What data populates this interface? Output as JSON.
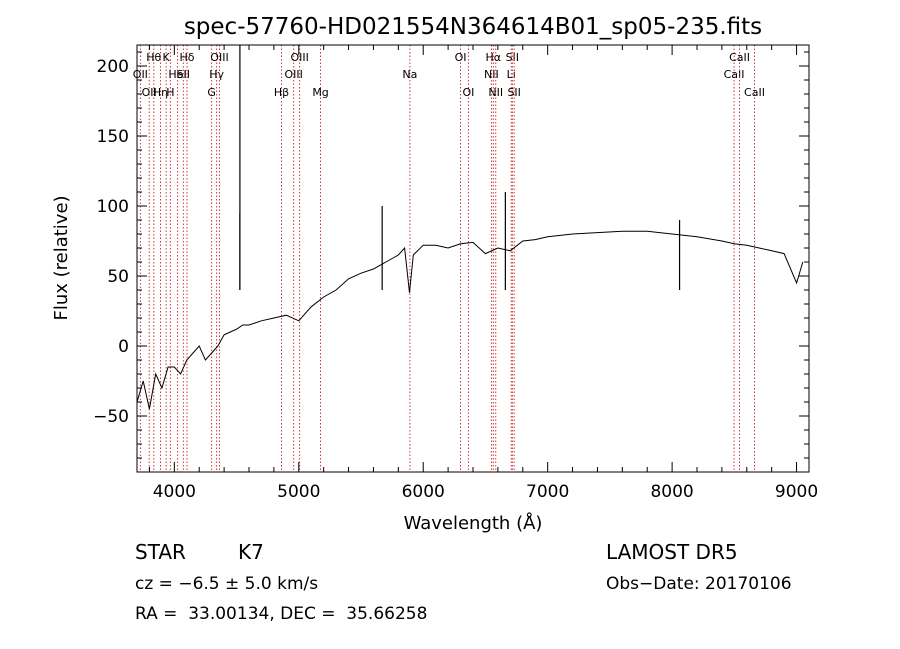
{
  "chart_data": {
    "type": "line",
    "title": "spec-57760-HD021554N364614B01_sp05-235.fits",
    "xlabel": "Wavelength (Å)",
    "ylabel": "Flux (relative)",
    "xlim": [
      3700,
      9100
    ],
    "ylim": [
      -90,
      215
    ],
    "x_ticks": [
      4000,
      5000,
      6000,
      7000,
      8000,
      9000
    ],
    "y_ticks": [
      -50,
      0,
      50,
      100,
      150,
      200
    ],
    "grid": false,
    "series": [
      {
        "x": [
          3700,
          3750,
          3800,
          3850,
          3900,
          3950,
          4000,
          4050,
          4100,
          4150,
          4200,
          4250,
          4300,
          4350,
          4400,
          4450,
          4500,
          4550,
          4600,
          4700,
          4800,
          4900,
          5000,
          5100,
          5200,
          5300,
          5400,
          5500,
          5600,
          5700,
          5800,
          5850,
          5890,
          5920,
          6000,
          6100,
          6200,
          6300,
          6400,
          6500,
          6600,
          6700,
          6800,
          6900,
          7000,
          7200,
          7400,
          7600,
          7800,
          8000,
          8200,
          8400,
          8500,
          8600,
          8700,
          8800,
          8900,
          9000,
          9050
        ],
        "y": [
          -40,
          -25,
          -45,
          -20,
          -30,
          -15,
          -15,
          -20,
          -10,
          -5,
          0,
          -10,
          -5,
          0,
          8,
          10,
          12,
          15,
          15,
          18,
          20,
          22,
          18,
          28,
          35,
          40,
          48,
          52,
          55,
          60,
          65,
          70,
          38,
          65,
          72,
          72,
          70,
          73,
          74,
          66,
          70,
          68,
          75,
          76,
          78,
          80,
          81,
          82,
          82,
          80,
          78,
          75,
          73,
          72,
          70,
          68,
          66,
          45,
          60
        ]
      }
    ],
    "spikes": [
      {
        "x": 4527,
        "y": 215
      },
      {
        "x": 4527,
        "y": 95
      },
      {
        "x": 5670,
        "y": 100
      },
      {
        "x": 6660,
        "y": 110
      },
      {
        "x": 8060,
        "y": 90
      }
    ],
    "line_markers": [
      {
        "x": 3727,
        "label": "OII",
        "row": 1
      },
      {
        "x": 3798,
        "label": "OII",
        "row": 2
      },
      {
        "x": 3835,
        "label": "Hθ",
        "row": 0
      },
      {
        "x": 3889,
        "label": "Hη",
        "row": 2
      },
      {
        "x": 3934,
        "label": "K",
        "row": 0
      },
      {
        "x": 3968,
        "label": "H",
        "row": 2
      },
      {
        "x": 4026,
        "label": "HeI",
        "row": 1
      },
      {
        "x": 4072,
        "label": "SII",
        "row": 1
      },
      {
        "x": 4102,
        "label": "Hδ",
        "row": 0
      },
      {
        "x": 4300,
        "label": "G",
        "row": 2
      },
      {
        "x": 4340,
        "label": "Hγ",
        "row": 1
      },
      {
        "x": 4363,
        "label": "OIII",
        "row": 0
      },
      {
        "x": 4861,
        "label": "Hβ",
        "row": 2
      },
      {
        "x": 4959,
        "label": "OIII",
        "row": 1
      },
      {
        "x": 5007,
        "label": "OIII",
        "row": 0
      },
      {
        "x": 5175,
        "label": "Mg",
        "row": 2
      },
      {
        "x": 5893,
        "label": "Na",
        "row": 1
      },
      {
        "x": 6300,
        "label": "OI",
        "row": 0
      },
      {
        "x": 6363,
        "label": "OI",
        "row": 2
      },
      {
        "x": 6548,
        "label": "NII",
        "row": 1
      },
      {
        "x": 6563,
        "label": "Hα",
        "row": 0
      },
      {
        "x": 6583,
        "label": "NII",
        "row": 2
      },
      {
        "x": 6707,
        "label": "Li",
        "row": 1
      },
      {
        "x": 6716,
        "label": "SII",
        "row": 0
      },
      {
        "x": 6731,
        "label": "SII",
        "row": 2
      },
      {
        "x": 8498,
        "label": "CaII",
        "row": 1
      },
      {
        "x": 8542,
        "label": "CaII",
        "row": 0
      },
      {
        "x": 8662,
        "label": "CaII",
        "row": 2
      }
    ]
  },
  "info": {
    "class": "STAR",
    "subclass": "K7",
    "cz": "cz = −6.5 ± 5.0 km/s",
    "coords": "RA =  33.00134, DEC =  35.66258",
    "survey": "LAMOST DR5",
    "obs_date": "Obs−Date: 20170106"
  }
}
